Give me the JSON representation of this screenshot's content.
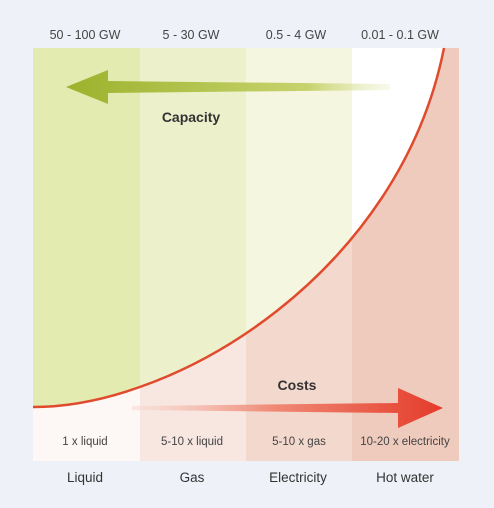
{
  "capacity_headers": [
    "50 - 100 GW",
    "5 - 30 GW",
    "0.5 - 4 GW",
    "0.01 - 0.1  GW"
  ],
  "cost_labels": [
    "1 x liquid",
    "5-10 x liquid",
    "5-10 x gas",
    "10-20 x electricity"
  ],
  "column_labels": [
    "Liquid",
    "Gas",
    "Electricity",
    "Hot water"
  ],
  "capacity_label": "Capacity",
  "costs_label": "Costs",
  "colors": {
    "capacity_arrow": "#9cb22c",
    "costs_arrow": "#e53b2a",
    "curve": "#e04a2d",
    "green_tints": [
      "#e3ebb0",
      "#ecf1cc",
      "#f5f6df",
      "#ffffff"
    ],
    "red_tints": [
      "#fdf7f5",
      "#f8e7e1",
      "#f3d8cd",
      "#eecbbd"
    ]
  },
  "icons": {
    "capacity_arrow": "arrow-left",
    "costs_arrow": "arrow-right"
  }
}
